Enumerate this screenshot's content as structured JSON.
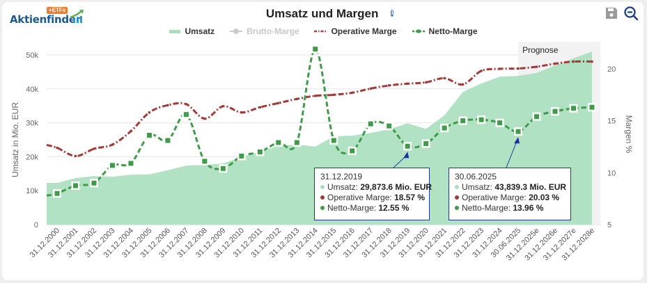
{
  "logo": {
    "text": "Aktienfinder",
    "badge": "+ETFs"
  },
  "title": "Umsatz und Margen",
  "toolbar": {
    "save_icon": "floppy-disk-icon",
    "zoom_icon": "zoom-out-icon"
  },
  "legend": [
    {
      "label": "Umsatz",
      "color": "#a8dfbc",
      "active": true
    },
    {
      "label": "Brutto-Marge",
      "color": "#cccccc",
      "active": false
    },
    {
      "label": "Operative Marge",
      "color": "#a33a3a",
      "active": true
    },
    {
      "label": "Netto-Marge",
      "color": "#3f9a4a",
      "active": true
    }
  ],
  "forecast_label": "Prognose",
  "tooltips": [
    {
      "date": "31.12.2019",
      "rows": [
        {
          "label": "Umsatz:",
          "value": "29,873.6 Mio. EUR",
          "color": "#a8dfbc"
        },
        {
          "label": "Operative Marge:",
          "value": "18.57 %",
          "color": "#a33a3a"
        },
        {
          "label": "Netto-Marge:",
          "value": "12.55 %",
          "color": "#3f9a4a"
        }
      ]
    },
    {
      "date": "30.06.2025",
      "rows": [
        {
          "label": "Umsatz:",
          "value": "43,839.3 Mio. EUR",
          "color": "#a8dfbc"
        },
        {
          "label": "Operative Marge:",
          "value": "20.03 %",
          "color": "#a33a3a"
        },
        {
          "label": "Netto-Marge:",
          "value": "13.96 %",
          "color": "#3f9a4a"
        }
      ]
    }
  ],
  "chart_data": {
    "type": "line",
    "title": "Umsatz und Margen",
    "xlabel": "",
    "ylabel": "Umsatz in Mio. EUR",
    "y2label": "Margen %",
    "ylim": [
      0,
      50000
    ],
    "y2lim": [
      5,
      21.5
    ],
    "yticks": [
      "0",
      "10k",
      "20k",
      "30k",
      "40k",
      "50k"
    ],
    "y2ticks": [
      "5",
      "10",
      "15",
      "20"
    ],
    "grid": true,
    "legend_position": "top-center",
    "categories": [
      "31.12.2000",
      "31.12.2001",
      "31.12.2002",
      "31.12.2003",
      "31.12.2004",
      "31.12.2005",
      "31.12.2006",
      "31.12.2007",
      "31.12.2008",
      "31.12.2009",
      "31.12.2010",
      "31.12.2011",
      "31.12.2012",
      "31.12.2013",
      "31.12.2014",
      "31.12.2015",
      "31.12.2016",
      "31.12.2017",
      "31.12.2018",
      "31.12.2019",
      "31.12.2020",
      "31.12.2021",
      "31.12.2022",
      "31.12.2023",
      "31.12.2024",
      "30.06.2025",
      "31.12.2025e",
      "31.12.2026e",
      "31.12.2027e",
      "31.12.2028e"
    ],
    "forecast_from": "30.06.2025",
    "series": [
      {
        "name": "Umsatz",
        "type": "area",
        "axis": "left",
        "values": [
          12300,
          13700,
          14300,
          14100,
          14700,
          14800,
          16000,
          17400,
          17600,
          18000,
          19900,
          21500,
          23200,
          23600,
          23000,
          26000,
          26200,
          27000,
          28100,
          29873.6,
          28200,
          32200,
          39100,
          41600,
          43600,
          43839.3,
          44700,
          46900,
          49000,
          51000
        ]
      },
      {
        "name": "Operative Marge",
        "type": "line",
        "axis": "right",
        "values": [
          12.4,
          11.6,
          12.3,
          12.7,
          14.0,
          15.8,
          16.5,
          16.6,
          15.2,
          16.4,
          15.8,
          16.3,
          16.7,
          17.1,
          17.4,
          17.5,
          17.7,
          18.1,
          18.4,
          18.57,
          18.7,
          19.1,
          18.5,
          19.8,
          20.0,
          20.03,
          20.2,
          20.5,
          20.7,
          20.7
        ]
      },
      {
        "name": "Netto-Marge",
        "type": "line",
        "axis": "right",
        "values": [
          8.0,
          8.75,
          9.0,
          10.7,
          10.9,
          13.6,
          13.1,
          15.6,
          11.1,
          10.4,
          11.6,
          12.0,
          12.9,
          12.9,
          21.9,
          13.1,
          12.1,
          14.7,
          14.5,
          12.55,
          12.8,
          14.3,
          15.0,
          15.1,
          14.8,
          13.96,
          15.4,
          15.9,
          16.2,
          16.3
        ]
      }
    ]
  }
}
